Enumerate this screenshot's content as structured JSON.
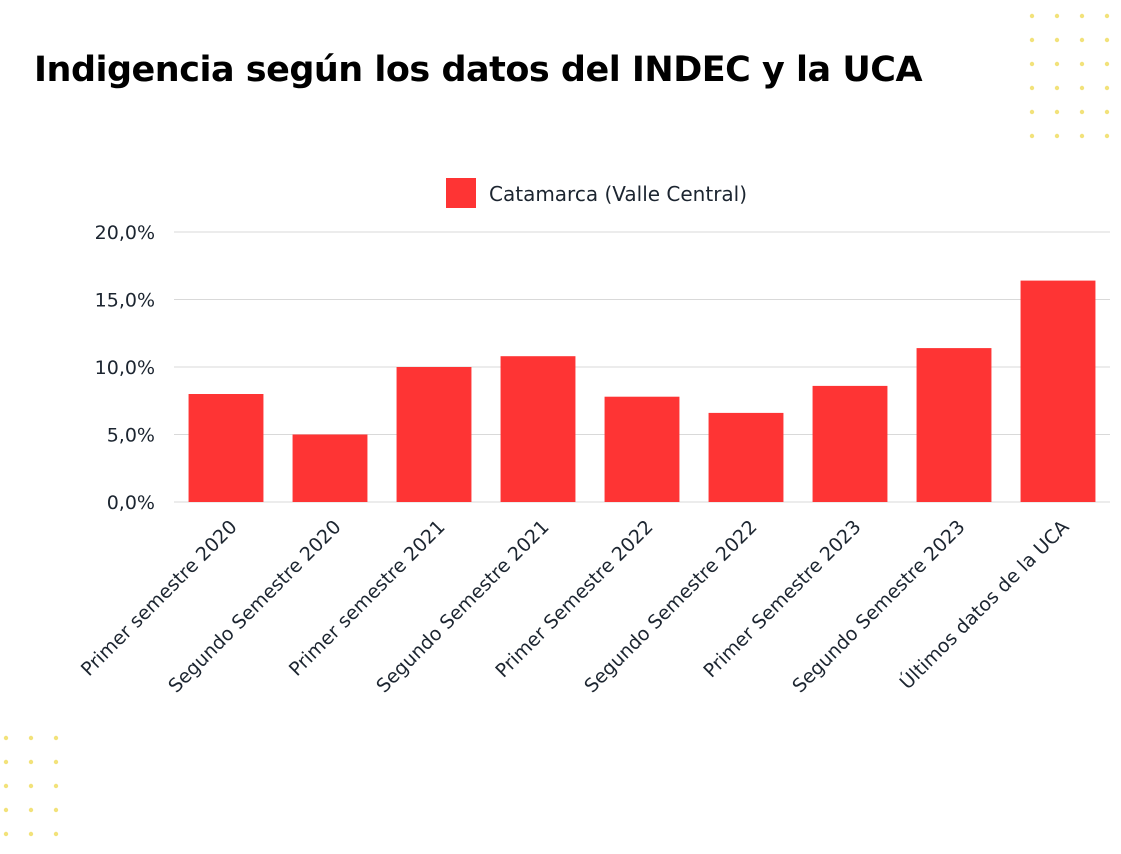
{
  "colors": {
    "bar": "#fe3434",
    "gridline": "#d9d9d9",
    "text": "#1c2530",
    "dots": "#f2e27a"
  },
  "chart_data": {
    "type": "bar",
    "title": "Indigencia según los datos del INDEC y la UCA",
    "categories": [
      "Primer semestre 2020",
      "Segundo Semestre 2020",
      "Primer semestre 2021",
      "Segundo Semestre 2021",
      "Primer Semestre 2022",
      "Segundo Semestre 2022",
      "Primer Semestre 2023",
      "Segundo Semestre 2023",
      "Últimos datos de la UCA"
    ],
    "series": [
      {
        "name": "Catamarca (Valle Central)",
        "values": [
          8.0,
          5.0,
          10.0,
          10.8,
          7.8,
          6.6,
          8.6,
          11.4,
          16.4
        ]
      }
    ],
    "yticks": [
      "0,0%",
      "5,0%",
      "10,0%",
      "15,0%",
      "20,0%"
    ],
    "ylim": [
      0,
      20
    ],
    "xlabel": "",
    "ylabel": "",
    "legend_position": "top-center",
    "grid": true
  }
}
